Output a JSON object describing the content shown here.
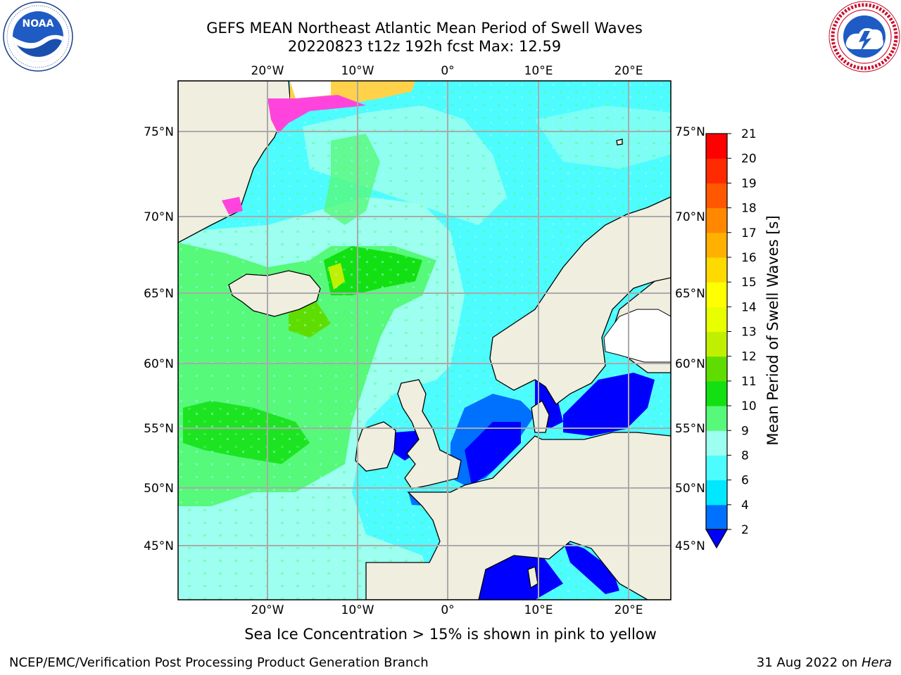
{
  "header": {
    "title_line1": "GEFS MEAN Northeast Atlantic Mean Period of Swell Waves",
    "title_line2": "20220823 t12z 192h fcst   Max: 12.59"
  },
  "logos": {
    "left": {
      "icon": "noaa-logo",
      "text": "NOAA",
      "ring_text": "NATIONAL OCEANIC AND ATMOSPHERIC ADMINISTRATION · U.S. DEPARTMENT OF COMMERCE"
    },
    "right": {
      "icon": "nws-logo",
      "ring_text": "NATIONAL WEATHER SERVICE"
    }
  },
  "map": {
    "lon_labels_top": [
      "20°W",
      "10°W",
      "0°",
      "10°E",
      "20°E"
    ],
    "lon_labels_bottom": [
      "20°W",
      "10°W",
      "0°",
      "10°E",
      "20°E"
    ],
    "lat_labels_left": [
      "75°N",
      "70°N",
      "65°N",
      "60°N",
      "55°N",
      "50°N",
      "45°N"
    ],
    "lat_labels_right": [
      "75°N",
      "70°N",
      "65°N",
      "60°N",
      "55°N",
      "50°N",
      "45°N"
    ],
    "colors": {
      "land": "#efeedf",
      "ice_white": "#ffffff",
      "ice_pink": "#ff44dd",
      "ice_yellow": "#ffd24a",
      "grid": "#aaaaaa"
    }
  },
  "colorbar": {
    "label": "Mean Period of Swell Waves [s]",
    "ticks": [
      "2",
      "4",
      "6",
      "8",
      "9",
      "10",
      "11",
      "12",
      "13",
      "14",
      "15",
      "16",
      "17",
      "18",
      "19",
      "20",
      "21"
    ],
    "colors": [
      "#0000ff",
      "#0070ff",
      "#00e8ff",
      "#4dfcff",
      "#9cffef",
      "#56f97a",
      "#12e012",
      "#60dd00",
      "#c0f000",
      "#e8ff00",
      "#ffff00",
      "#ffda00",
      "#ffb000",
      "#ff8800",
      "#ff5800",
      "#ff2a00",
      "#ff0000"
    ]
  },
  "caption": "Sea Ice Concentration > 15% is shown in pink to yellow",
  "footer": {
    "left": "NCEP/EMC/Verification Post Processing Product Generation Branch",
    "date": "31 Aug 2022 on ",
    "host": "Hera"
  }
}
